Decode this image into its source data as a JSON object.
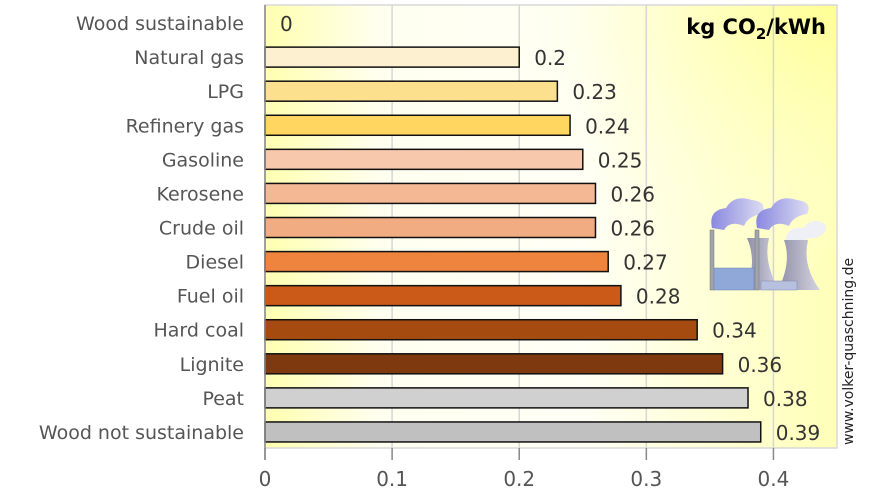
{
  "chart_data": {
    "type": "bar",
    "orientation": "horizontal",
    "unit_label": {
      "prefix": "kg CO",
      "sub": "2",
      "suffix": "/kWh"
    },
    "categories": [
      "Wood sustainable",
      "Natural gas",
      "LPG",
      "Refinery gas",
      "Gasoline",
      "Kerosene",
      "Crude oil",
      "Diesel",
      "Fuel oil",
      "Hard coal",
      "Lignite",
      "Peat",
      "Wood not sustainable"
    ],
    "values": [
      0,
      0.2,
      0.23,
      0.24,
      0.25,
      0.26,
      0.26,
      0.27,
      0.28,
      0.34,
      0.36,
      0.38,
      0.39
    ],
    "value_labels": [
      "0",
      "0.2",
      "0.23",
      "0.24",
      "0.25",
      "0.26",
      "0.26",
      "0.27",
      "0.28",
      "0.34",
      "0.36",
      "0.38",
      "0.39"
    ],
    "colors": [
      "#FDF0D0",
      "#FDF0D0",
      "#FDE08E",
      "#FFD760",
      "#F8C8AC",
      "#F5B894",
      "#F2AC82",
      "#EE843E",
      "#CB5A18",
      "#A64B10",
      "#7E3A0E",
      "#D0D0D0",
      "#C0C0C0"
    ],
    "xlim": [
      0,
      0.45
    ],
    "xticks": [
      0,
      0.1,
      0.2,
      0.3,
      0.4
    ],
    "xtick_labels": [
      "0",
      "0.1",
      "0.2",
      "0.3",
      "0.4"
    ],
    "grid": true,
    "xlabel": "",
    "ylabel": ""
  },
  "watermark": "www.volker-quaschning.de",
  "icon": "power-plant-icon"
}
